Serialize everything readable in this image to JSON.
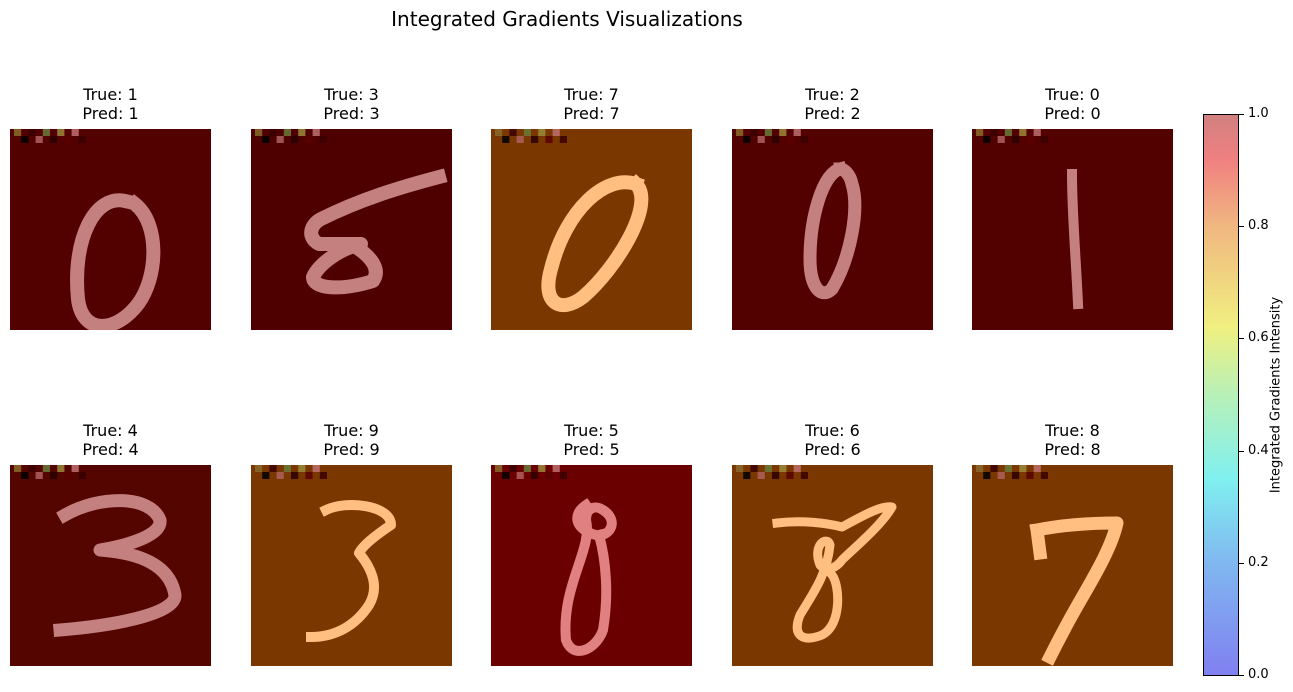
{
  "chart_data": {
    "type": "heatmap",
    "title": "Integrated Gradients Visualizations",
    "panels": [
      {
        "true_label": "True: 1",
        "pred_label": "Pred: 1",
        "digit": "0",
        "background_color": "#520000",
        "stroke_color": "#c47f7f"
      },
      {
        "true_label": "True: 3",
        "pred_label": "Pred: 3",
        "digit": "5",
        "background_color": "#4e0000",
        "stroke_color": "#c47f7f"
      },
      {
        "true_label": "True: 7",
        "pred_label": "Pred: 7",
        "digit": "0",
        "background_color": "#7a3700",
        "stroke_color": "#ffbf80"
      },
      {
        "true_label": "True: 2",
        "pred_label": "Pred: 2",
        "digit": "0",
        "background_color": "#520000",
        "stroke_color": "#c47f7f"
      },
      {
        "true_label": "True: 0",
        "pred_label": "Pred: 0",
        "digit": "1",
        "background_color": "#520000",
        "stroke_color": "#c47f7f"
      },
      {
        "true_label": "True: 4",
        "pred_label": "Pred: 4",
        "digit": "3",
        "background_color": "#540500",
        "stroke_color": "#c47f7f"
      },
      {
        "true_label": "True: 9",
        "pred_label": "Pred: 9",
        "digit": "3",
        "background_color": "#7a3700",
        "stroke_color": "#ffbf80"
      },
      {
        "true_label": "True: 5",
        "pred_label": "Pred: 5",
        "digit": "8",
        "background_color": "#6b0000",
        "stroke_color": "#e08080"
      },
      {
        "true_label": "True: 6",
        "pred_label": "Pred: 6",
        "digit": "8",
        "background_color": "#7a3700",
        "stroke_color": "#ffbf80"
      },
      {
        "true_label": "True: 8",
        "pred_label": "Pred: 8",
        "digit": "7",
        "background_color": "#7a3700",
        "stroke_color": "#ffbf80"
      }
    ],
    "colorbar": {
      "label": "Integrated Gradients Intensity",
      "range": [
        0.0,
        1.0
      ],
      "ticks": [
        "0.0",
        "0.2",
        "0.4",
        "0.6",
        "0.8",
        "1.0"
      ],
      "colormap": "jet (alpha 0.5)"
    }
  }
}
